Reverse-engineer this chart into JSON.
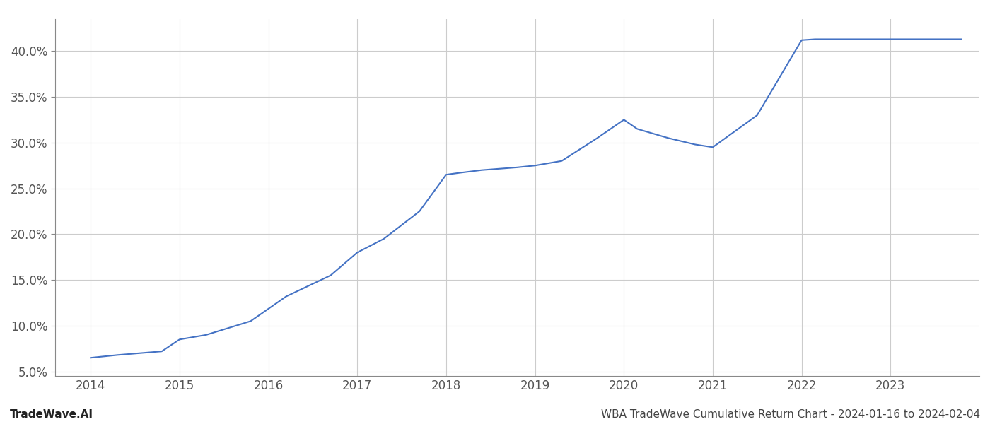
{
  "x": [
    2014.0,
    2014.3,
    2014.8,
    2015.0,
    2015.3,
    2015.8,
    2016.2,
    2016.7,
    2017.0,
    2017.3,
    2017.7,
    2018.0,
    2018.15,
    2018.4,
    2018.8,
    2019.0,
    2019.3,
    2019.7,
    2020.0,
    2020.15,
    2020.5,
    2020.8,
    2021.0,
    2021.5,
    2022.0,
    2022.15,
    2022.5,
    2022.8,
    2023.0,
    2023.8
  ],
  "y": [
    6.5,
    6.8,
    7.2,
    8.5,
    9.0,
    10.5,
    13.2,
    15.5,
    18.0,
    19.5,
    22.5,
    26.5,
    26.7,
    27.0,
    27.3,
    27.5,
    28.0,
    30.5,
    32.5,
    31.5,
    30.5,
    29.8,
    29.5,
    33.0,
    41.2,
    41.3,
    41.3,
    41.3,
    41.3,
    41.3
  ],
  "line_color": "#4472C4",
  "line_width": 1.5,
  "background_color": "#ffffff",
  "grid_color": "#cccccc",
  "xlim": [
    2013.6,
    2024.0
  ],
  "ylim": [
    4.5,
    43.5
  ],
  "yticks": [
    5.0,
    10.0,
    15.0,
    20.0,
    25.0,
    30.0,
    35.0,
    40.0
  ],
  "xticks": [
    2014,
    2015,
    2016,
    2017,
    2018,
    2019,
    2020,
    2021,
    2022,
    2023
  ],
  "footer_left": "TradeWave.AI",
  "footer_right": "WBA TradeWave Cumulative Return Chart - 2024-01-16 to 2024-02-04",
  "footer_fontsize": 11,
  "tick_fontsize": 12
}
